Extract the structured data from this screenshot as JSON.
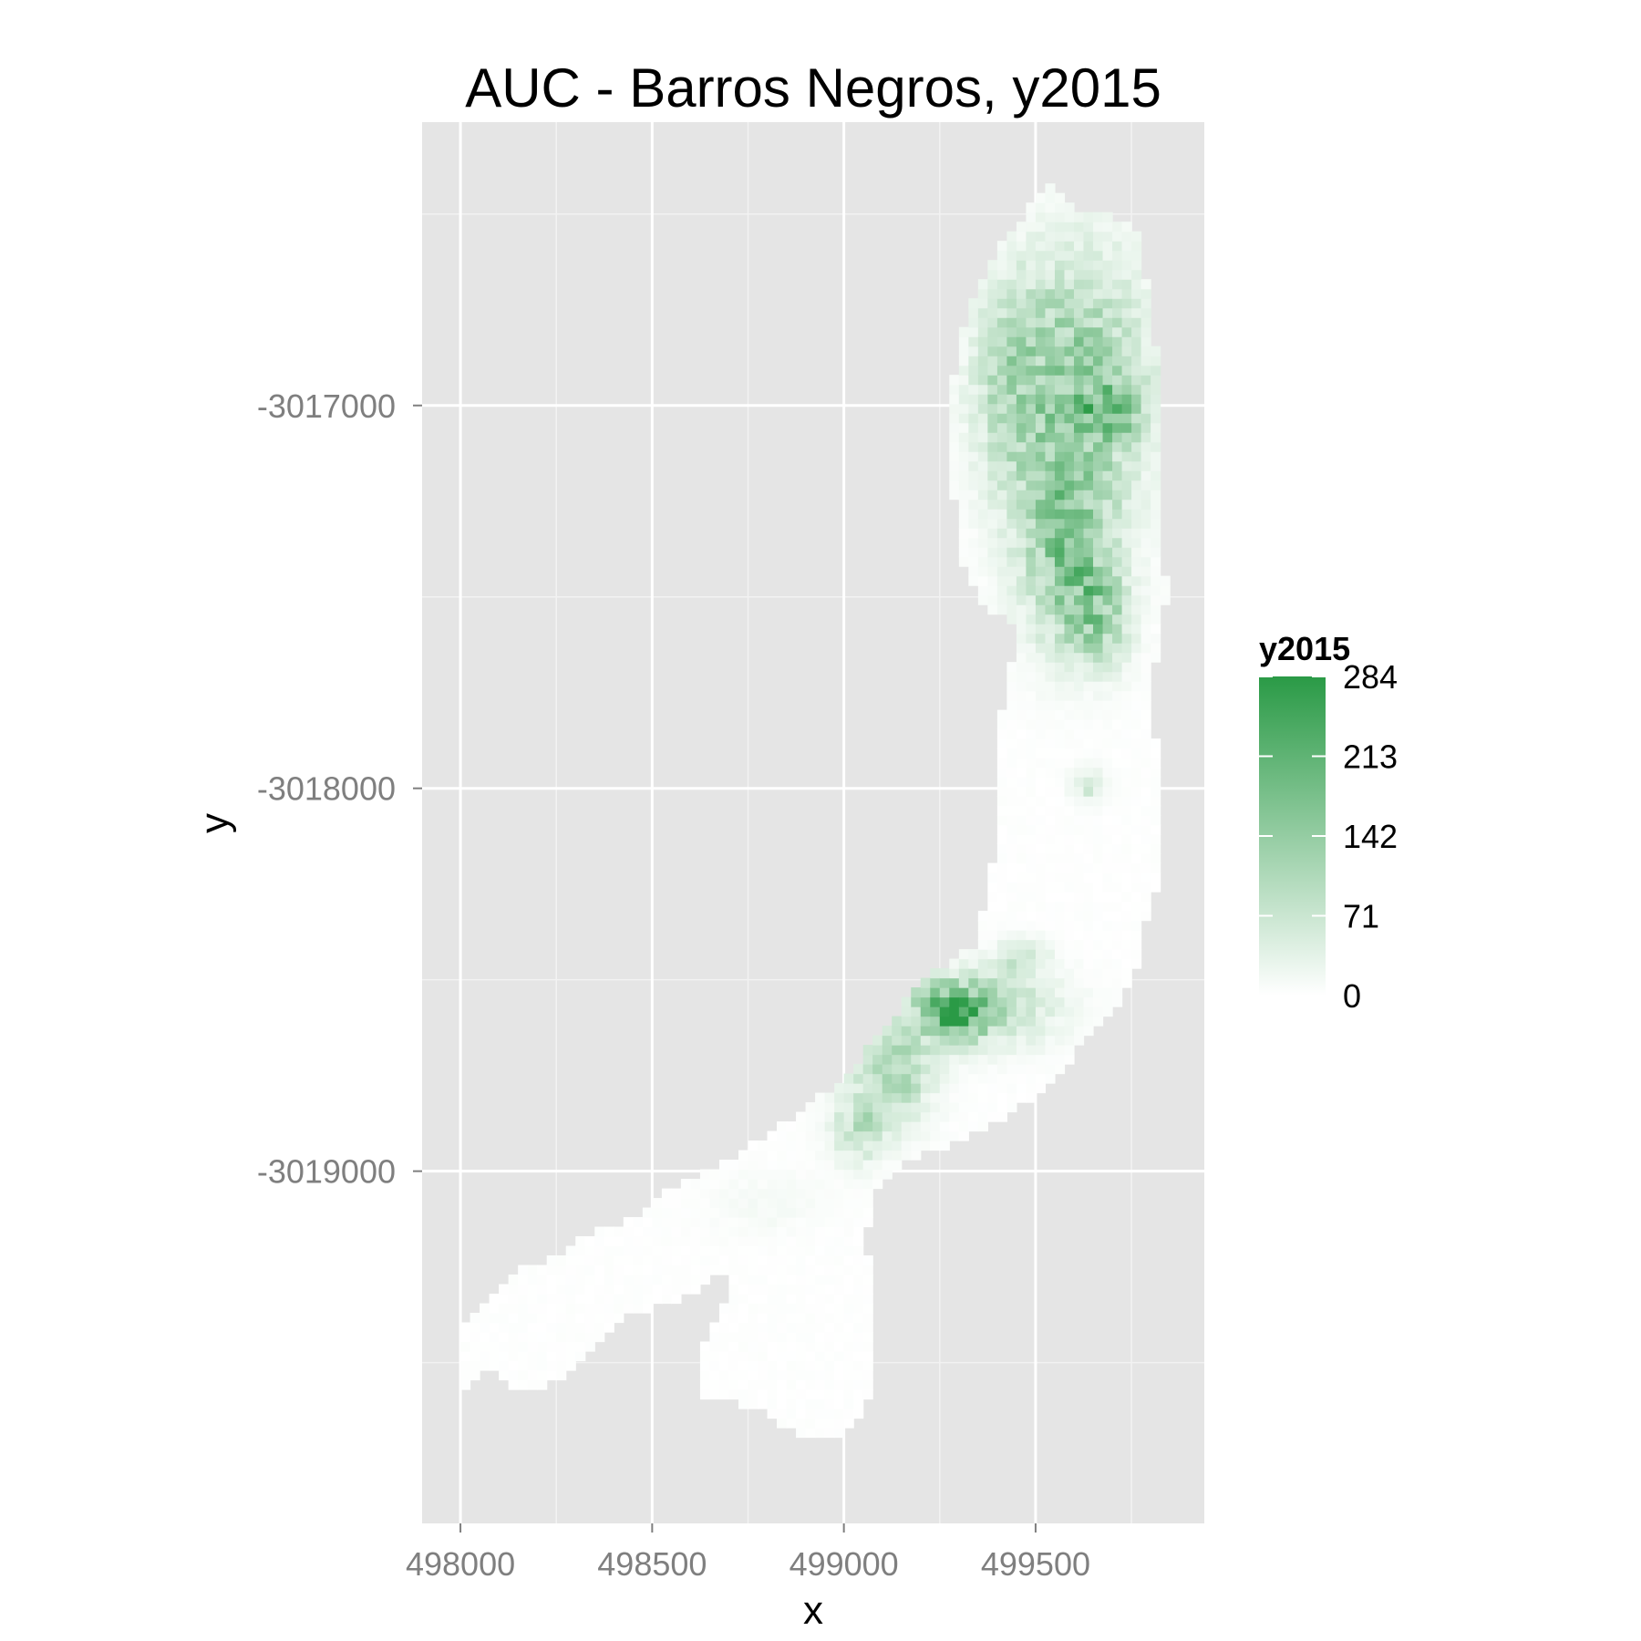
{
  "chart_data": {
    "type": "heatmap",
    "title": "AUC - Barros Negros, y2015",
    "xlabel": "x",
    "ylabel": "y",
    "x_ticks": [
      "498000",
      "498500",
      "499000",
      "499500"
    ],
    "x_tick_values": [
      498000,
      498500,
      499000,
      499500
    ],
    "y_ticks": [
      "-3017000",
      "-3018000",
      "-3019000"
    ],
    "y_tick_values": [
      -3017000,
      -3018000,
      -3019000
    ],
    "xlim": [
      497900,
      499940
    ],
    "ylim": [
      -3019920,
      -3016260
    ],
    "grid": true,
    "legend": {
      "title": "y2015",
      "position": "right",
      "labels": [
        "284",
        "213",
        "142",
        "71",
        "0"
      ],
      "label_values": [
        284,
        213,
        142,
        71,
        0
      ],
      "min": 0,
      "max": 284,
      "low_color": "#ffffff",
      "high_color": "#2a9a46"
    },
    "colors": {
      "panel_background": "#e5e5e5",
      "grid_major": "#ffffff",
      "grid_minor": "#f2f2f2",
      "fill_low": "#ffffff",
      "fill_high": "#2a9a46"
    },
    "cell_size": 25,
    "footprint": [
      [
        499500,
        -3016450
      ],
      [
        499540,
        -3016420
      ],
      [
        499580,
        -3016480
      ],
      [
        499690,
        -3016490
      ],
      [
        499770,
        -3016560
      ],
      [
        499790,
        -3016680
      ],
      [
        499810,
        -3016820
      ],
      [
        499830,
        -3017050
      ],
      [
        499830,
        -3017300
      ],
      [
        499840,
        -3017500
      ],
      [
        499830,
        -3017620
      ],
      [
        499800,
        -3017720
      ],
      [
        499820,
        -3017950
      ],
      [
        499830,
        -3018250
      ],
      [
        499790,
        -3018320
      ],
      [
        499780,
        -3018450
      ],
      [
        499720,
        -3018560
      ],
      [
        499620,
        -3018670
      ],
      [
        499530,
        -3018780
      ],
      [
        499420,
        -3018860
      ],
      [
        499280,
        -3018930
      ],
      [
        499150,
        -3018980
      ],
      [
        499080,
        -3019050
      ],
      [
        499060,
        -3019150
      ],
      [
        499070,
        -3019400
      ],
      [
        499080,
        -3019540
      ],
      [
        499050,
        -3019620
      ],
      [
        498990,
        -3019690
      ],
      [
        498890,
        -3019700
      ],
      [
        498810,
        -3019640
      ],
      [
        498710,
        -3019600
      ],
      [
        498620,
        -3019580
      ],
      [
        498640,
        -3019440
      ],
      [
        498700,
        -3019320
      ],
      [
        498710,
        -3019250
      ],
      [
        498580,
        -3019330
      ],
      [
        498440,
        -3019380
      ],
      [
        498340,
        -3019460
      ],
      [
        498250,
        -3019550
      ],
      [
        498160,
        -3019580
      ],
      [
        498080,
        -3019510
      ],
      [
        498010,
        -3019560
      ],
      [
        497990,
        -3019500
      ],
      [
        498010,
        -3019410
      ],
      [
        498060,
        -3019350
      ],
      [
        498140,
        -3019260
      ],
      [
        498240,
        -3019230
      ],
      [
        498330,
        -3019170
      ],
      [
        498450,
        -3019120
      ],
      [
        498560,
        -3019040
      ],
      [
        498690,
        -3018980
      ],
      [
        498820,
        -3018890
      ],
      [
        498920,
        -3018820
      ],
      [
        499020,
        -3018740
      ],
      [
        499090,
        -3018640
      ],
      [
        499160,
        -3018560
      ],
      [
        499240,
        -3018480
      ],
      [
        499340,
        -3018410
      ],
      [
        499370,
        -3018300
      ],
      [
        499390,
        -3018190
      ],
      [
        499400,
        -3018000
      ],
      [
        499410,
        -3017800
      ],
      [
        499460,
        -3017570
      ],
      [
        499390,
        -3017550
      ],
      [
        499320,
        -3017450
      ],
      [
        499290,
        -3017300
      ],
      [
        499280,
        -3017100
      ],
      [
        499290,
        -3016850
      ],
      [
        499330,
        -3016750
      ],
      [
        499370,
        -3016650
      ],
      [
        499420,
        -3016570
      ],
      [
        499470,
        -3016500
      ]
    ],
    "hotspots": [
      {
        "x": 499600,
        "y": -3016950,
        "sx": 130,
        "sy": 230,
        "value": 150
      },
      {
        "x": 499700,
        "y": -3017010,
        "sx": 45,
        "sy": 45,
        "value": 140
      },
      {
        "x": 499580,
        "y": -3017380,
        "sx": 80,
        "sy": 160,
        "value": 145
      },
      {
        "x": 499660,
        "y": -3017550,
        "sx": 60,
        "sy": 90,
        "value": 110
      },
      {
        "x": 499420,
        "y": -3016950,
        "sx": 60,
        "sy": 180,
        "value": 60
      },
      {
        "x": 499280,
        "y": -3018580,
        "sx": 60,
        "sy": 50,
        "value": 220
      },
      {
        "x": 499380,
        "y": -3018570,
        "sx": 120,
        "sy": 70,
        "value": 90
      },
      {
        "x": 499130,
        "y": -3018740,
        "sx": 70,
        "sy": 90,
        "value": 110
      },
      {
        "x": 499040,
        "y": -3018890,
        "sx": 50,
        "sy": 60,
        "value": 80
      },
      {
        "x": 499470,
        "y": -3018440,
        "sx": 40,
        "sy": 30,
        "value": 80
      },
      {
        "x": 499640,
        "y": -3017990,
        "sx": 30,
        "sy": 30,
        "value": 60
      },
      {
        "x": 498800,
        "y": -3019080,
        "sx": 100,
        "sy": 60,
        "value": 12
      }
    ]
  }
}
